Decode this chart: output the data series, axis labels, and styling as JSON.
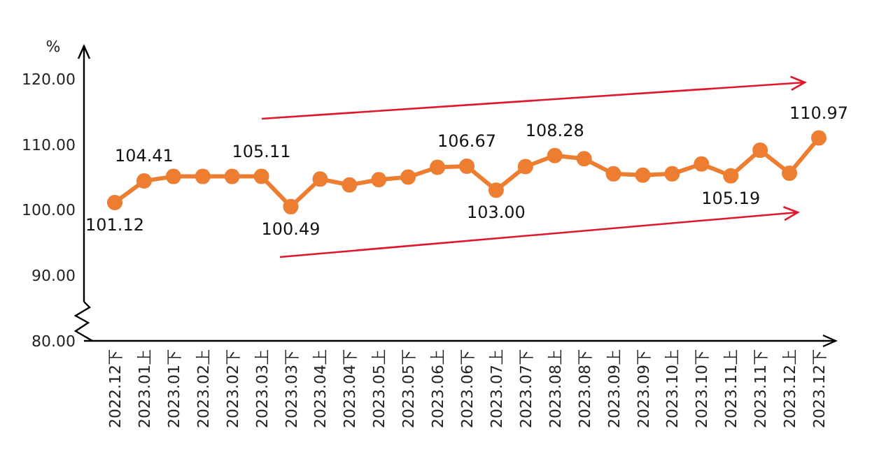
{
  "chart_data": {
    "type": "line",
    "ylabel": "%",
    "ylim": [
      80,
      125
    ],
    "yticks": [
      {
        "value": 80,
        "label": "80.00"
      },
      {
        "value": 90,
        "label": "90.00"
      },
      {
        "value": 100,
        "label": "100.00"
      },
      {
        "value": 110,
        "label": "110.00"
      },
      {
        "value": 120,
        "label": "120.00"
      }
    ],
    "marker": "circle",
    "line_style": "solid",
    "grid": false,
    "categories": [
      "2022.12下",
      "2023.01上",
      "2023.01下",
      "2023.02上",
      "2023.02下",
      "2023.03上",
      "2023.03下",
      "2023.04上",
      "2023.04下",
      "2023.05上",
      "2023.05下",
      "2023.06上",
      "2023.06下",
      "2023.07上",
      "2023.07下",
      "2023.08上",
      "2023.08下",
      "2023.09上",
      "2023.09下",
      "2023.10上",
      "2023.10下",
      "2023.11上",
      "2023.11下",
      "2023.12上",
      "2023.12下"
    ],
    "series": [
      {
        "color": "#ed7d31",
        "values": [
          101.12,
          104.41,
          105.1,
          105.1,
          105.1,
          105.11,
          100.49,
          104.7,
          103.8,
          104.6,
          105.0,
          106.5,
          106.67,
          103.0,
          106.6,
          108.28,
          107.8,
          105.5,
          105.3,
          105.5,
          107.0,
          105.19,
          109.1,
          105.6,
          110.97
        ],
        "value_labels": [
          "101.12",
          "104.41",
          null,
          null,
          null,
          "105.11",
          "100.49",
          null,
          null,
          null,
          null,
          null,
          "106.67",
          "103.00",
          null,
          "108.28",
          null,
          null,
          null,
          null,
          null,
          "105.19",
          null,
          null,
          "110.97"
        ]
      }
    ]
  }
}
